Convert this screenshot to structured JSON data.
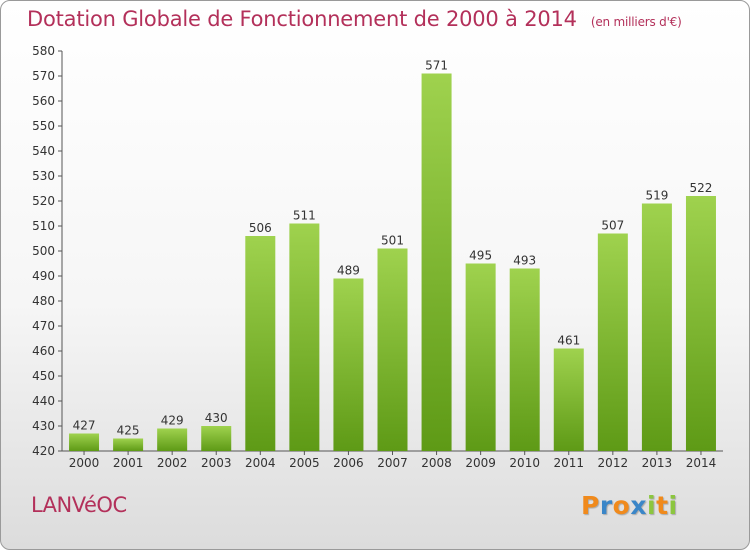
{
  "chart_data": {
    "type": "bar",
    "title": "Dotation Globale de Fonctionnement de 2000 à 2014",
    "unit_note": "(en milliers d'€)",
    "categories": [
      "2000",
      "2001",
      "2002",
      "2003",
      "2004",
      "2005",
      "2006",
      "2007",
      "2008",
      "2009",
      "2010",
      "2011",
      "2012",
      "2013",
      "2014"
    ],
    "values": [
      427,
      425,
      429,
      430,
      506,
      511,
      489,
      501,
      571,
      495,
      493,
      461,
      507,
      519,
      522
    ],
    "ylim": [
      420,
      580
    ],
    "yticks": [
      420,
      430,
      440,
      450,
      460,
      470,
      480,
      490,
      500,
      510,
      520,
      530,
      540,
      550,
      560,
      570,
      580
    ],
    "grid": false,
    "bar_color": "#7ab22e"
  },
  "place_name": "LANVéOC",
  "brand": {
    "name": "Proxiti",
    "letters": [
      "P",
      "r",
      "o",
      "x",
      "i",
      "t",
      "i"
    ],
    "colors": [
      "#f08a1c",
      "#3a86c8",
      "#f08a1c",
      "#3a86c8",
      "#8cc63f",
      "#f08a1c",
      "#8cc63f"
    ]
  }
}
